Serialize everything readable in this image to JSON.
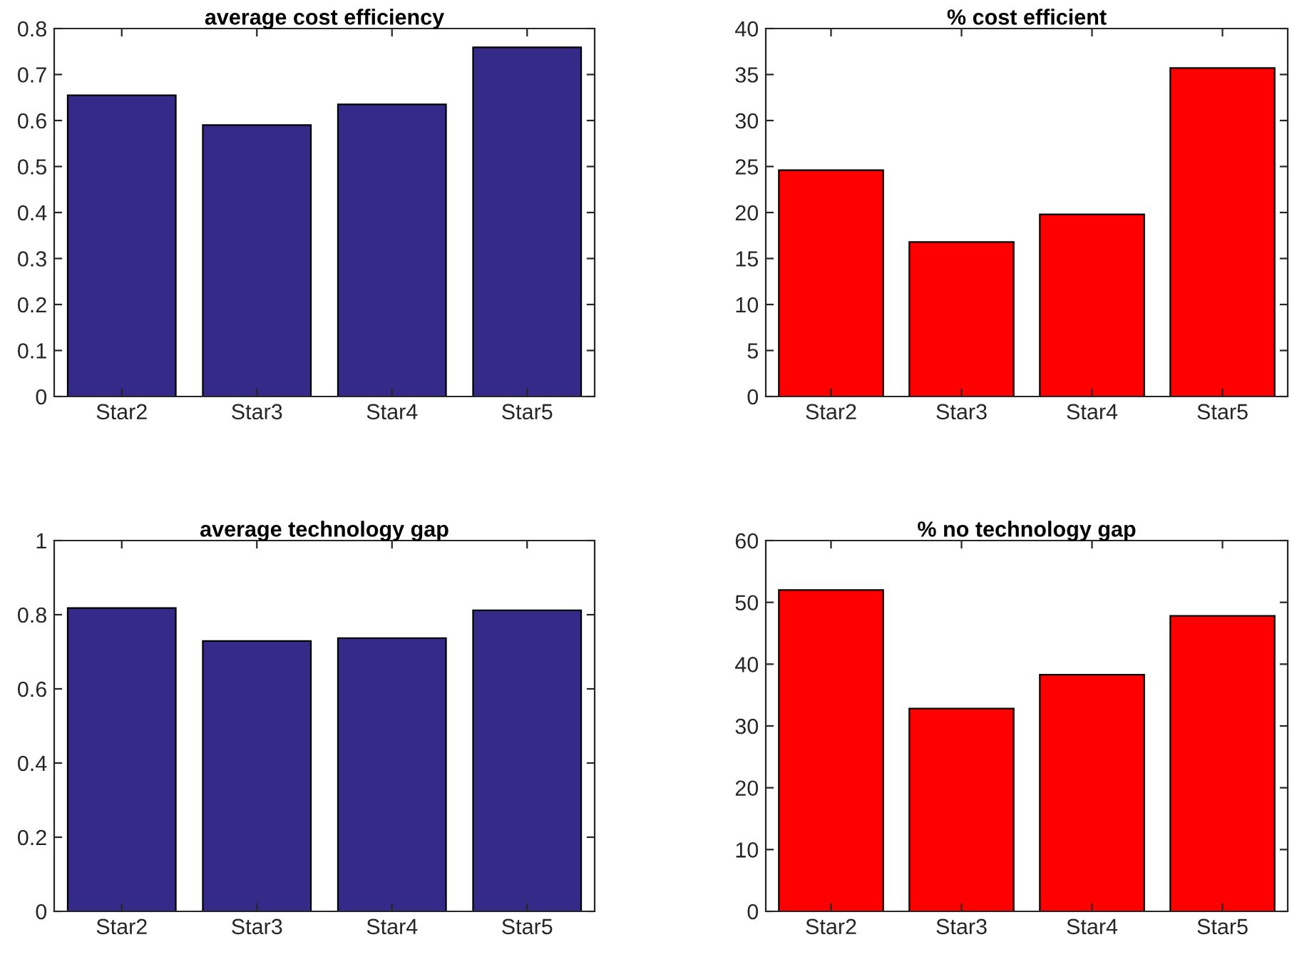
{
  "chart_data": [
    {
      "type": "bar",
      "title": "average cost efficiency",
      "categories": [
        "Star2",
        "Star3",
        "Star4",
        "Star5"
      ],
      "values": [
        0.655,
        0.59,
        0.635,
        0.759
      ],
      "color": "#352a87",
      "ylim": [
        0,
        0.8
      ],
      "yticks": [
        0,
        0.1,
        0.2,
        0.3,
        0.4,
        0.5,
        0.6,
        0.7,
        0.8
      ],
      "grid": false,
      "legend": false
    },
    {
      "type": "bar",
      "title": "% cost efficient",
      "categories": [
        "Star2",
        "Star3",
        "Star4",
        "Star5"
      ],
      "values": [
        24.6,
        16.8,
        19.8,
        35.7
      ],
      "color": "#ff0000",
      "ylim": [
        0,
        40
      ],
      "yticks": [
        0,
        5,
        10,
        15,
        20,
        25,
        30,
        35,
        40
      ],
      "grid": false,
      "legend": false
    },
    {
      "type": "bar",
      "title": "average technology gap",
      "categories": [
        "Star2",
        "Star3",
        "Star4",
        "Star5"
      ],
      "values": [
        0.818,
        0.729,
        0.737,
        0.812
      ],
      "color": "#352a87",
      "ylim": [
        0,
        1
      ],
      "yticks": [
        0,
        0.2,
        0.4,
        0.6,
        0.8,
        1
      ],
      "grid": false,
      "legend": false
    },
    {
      "type": "bar",
      "title": "% no technology gap",
      "categories": [
        "Star2",
        "Star3",
        "Star4",
        "Star5"
      ],
      "values": [
        52.0,
        32.8,
        38.3,
        47.8
      ],
      "color": "#ff0000",
      "ylim": [
        0,
        60
      ],
      "yticks": [
        0,
        10,
        20,
        30,
        40,
        50,
        60
      ],
      "grid": false,
      "legend": false
    }
  ]
}
